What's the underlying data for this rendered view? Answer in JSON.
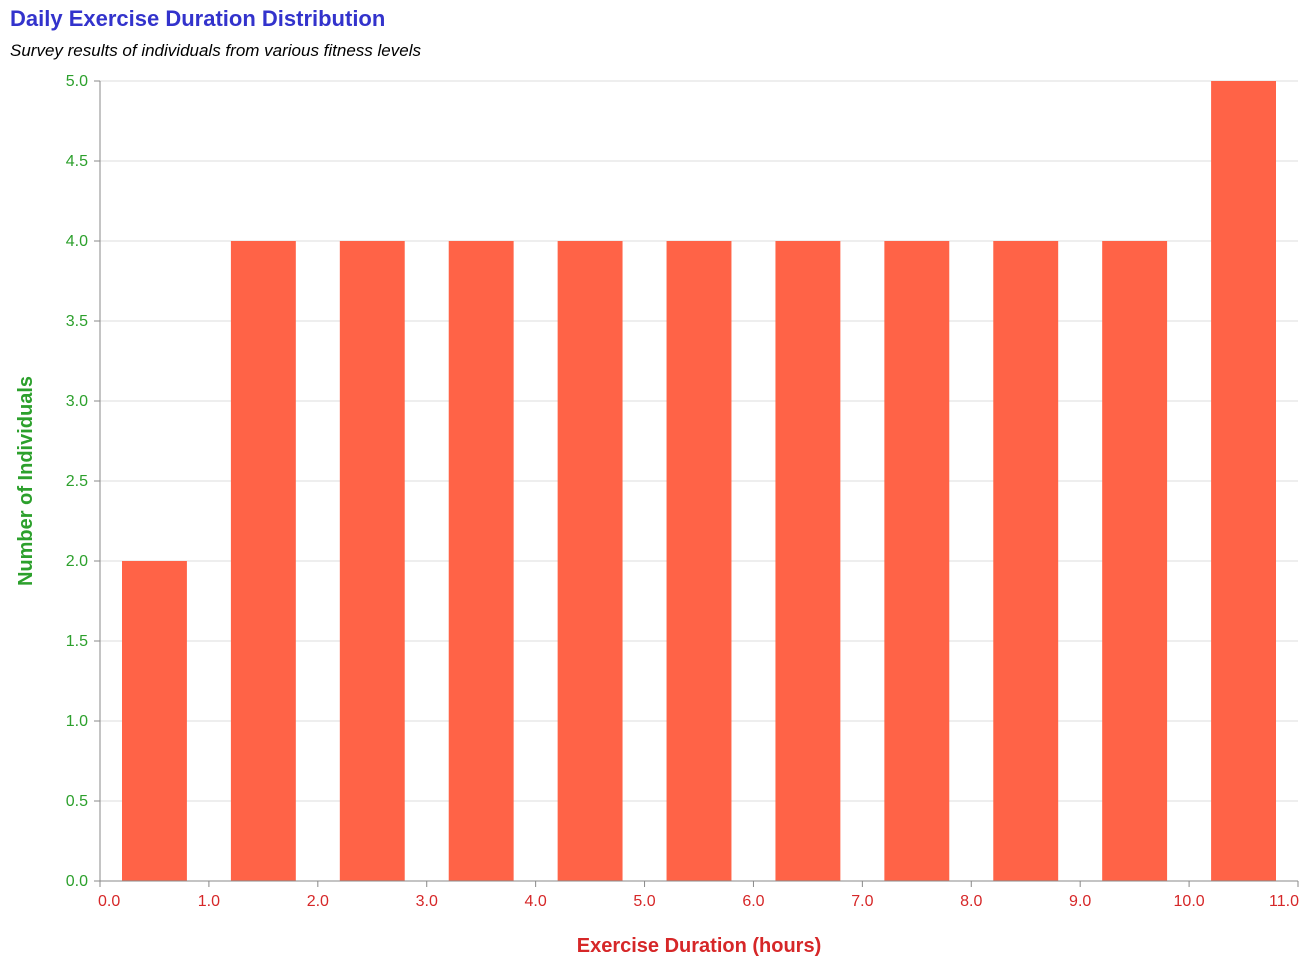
{
  "chart_data": {
    "type": "bar",
    "title": "Daily Exercise Duration Distribution",
    "subtitle": "Survey results of individuals from various fitness levels",
    "xlabel": "Exercise Duration (hours)",
    "ylabel": "Number of Individuals",
    "bins": [
      {
        "start": 0,
        "end": 1,
        "count": 2
      },
      {
        "start": 1,
        "end": 2,
        "count": 4
      },
      {
        "start": 2,
        "end": 3,
        "count": 4
      },
      {
        "start": 3,
        "end": 4,
        "count": 4
      },
      {
        "start": 4,
        "end": 5,
        "count": 4
      },
      {
        "start": 5,
        "end": 6,
        "count": 4
      },
      {
        "start": 6,
        "end": 7,
        "count": 4
      },
      {
        "start": 7,
        "end": 8,
        "count": 4
      },
      {
        "start": 8,
        "end": 9,
        "count": 4
      },
      {
        "start": 9,
        "end": 10,
        "count": 4
      },
      {
        "start": 10,
        "end": 11,
        "count": 5
      }
    ],
    "xlim": [
      0,
      11
    ],
    "ylim": [
      0,
      5
    ],
    "x_ticks": [
      "0.0",
      "1.0",
      "2.0",
      "3.0",
      "4.0",
      "5.0",
      "6.0",
      "7.0",
      "8.0",
      "9.0",
      "10.0",
      "11.0"
    ],
    "y_ticks": [
      "0.0",
      "0.5",
      "1.0",
      "1.5",
      "2.0",
      "2.5",
      "3.0",
      "3.5",
      "4.0",
      "4.5",
      "5.0"
    ],
    "grid": true,
    "colors": {
      "bar": "#ff6347",
      "title": "#3333cc",
      "x_axis": "#d62728",
      "y_axis": "#2ca02c"
    }
  }
}
